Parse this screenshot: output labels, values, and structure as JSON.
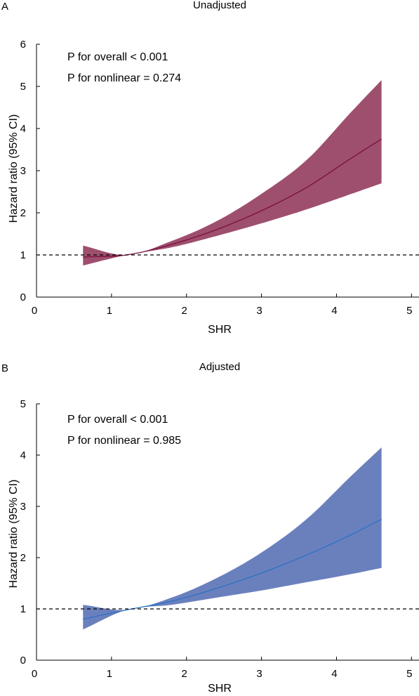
{
  "chart_data": [
    {
      "type": "area",
      "panel": "A",
      "title": "Unadjusted",
      "xlabel": "SHR",
      "ylabel": "Hazard ratio  (95% CI)",
      "xlim": [
        0,
        5.1
      ],
      "ylim": [
        0,
        6
      ],
      "xticks": [
        "0",
        "1",
        "2",
        "3",
        "4",
        "5"
      ],
      "yticks": [
        "0",
        "1",
        "2",
        "3",
        "4",
        "5",
        "6"
      ],
      "reference_line": 1,
      "annotations": [
        "P for overall < 0.001",
        "P for nonlinear = 0.274"
      ],
      "colors": {
        "band": "#9e4f6e",
        "line": "#7a0f3e"
      },
      "series": [
        {
          "x": [
            0.62,
            1.2,
            1.8,
            2.4,
            3.0,
            3.6,
            4.2,
            4.6
          ],
          "y": [
            0.95,
            1.0,
            1.25,
            1.6,
            2.05,
            2.6,
            3.3,
            3.75
          ],
          "lower": [
            0.75,
            1.0,
            1.18,
            1.45,
            1.75,
            2.08,
            2.45,
            2.7
          ],
          "upper": [
            1.22,
            1.0,
            1.33,
            1.8,
            2.45,
            3.25,
            4.4,
            5.15
          ]
        }
      ]
    },
    {
      "type": "area",
      "panel": "B",
      "title": "Adjusted",
      "xlabel": "SHR",
      "ylabel": "Hazard ratio (95% CI)",
      "xlim": [
        0,
        5.1
      ],
      "ylim": [
        0,
        5
      ],
      "xticks": [
        "0",
        "1",
        "2",
        "3",
        "4",
        "5"
      ],
      "yticks": [
        "0",
        "1",
        "2",
        "3",
        "4",
        "5"
      ],
      "reference_line": 1,
      "annotations": [
        "P for overall < 0.001",
        "P for nonlinear = 0.985"
      ],
      "colors": {
        "band": "#6a80bd",
        "line": "#2b72c2"
      },
      "series": [
        {
          "x": [
            0.62,
            1.2,
            1.8,
            2.4,
            3.0,
            3.6,
            4.2,
            4.6
          ],
          "y": [
            0.8,
            0.98,
            1.15,
            1.4,
            1.7,
            2.05,
            2.45,
            2.75
          ],
          "lower": [
            0.6,
            0.98,
            1.08,
            1.22,
            1.36,
            1.52,
            1.68,
            1.8
          ],
          "upper": [
            1.08,
            0.98,
            1.22,
            1.6,
            2.1,
            2.75,
            3.6,
            4.15
          ]
        }
      ]
    }
  ]
}
